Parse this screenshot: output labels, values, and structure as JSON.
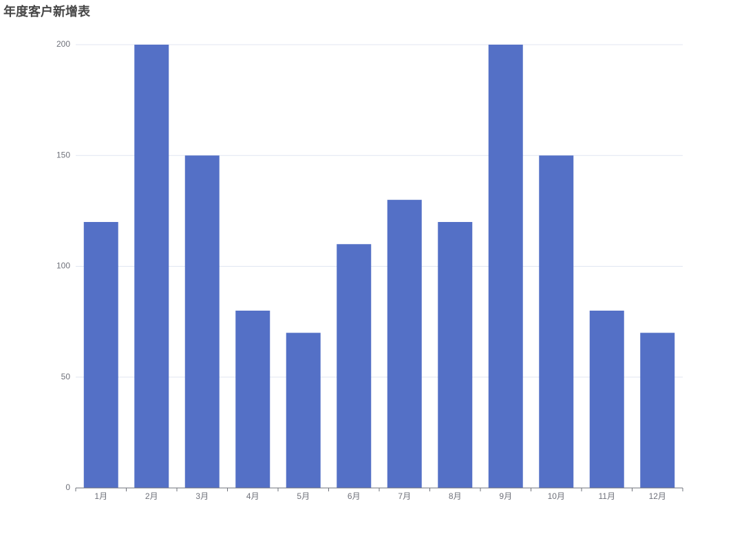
{
  "chart_data": {
    "type": "bar",
    "title": "年度客户新增表",
    "categories": [
      "1月",
      "2月",
      "3月",
      "4月",
      "5月",
      "6月",
      "7月",
      "8月",
      "9月",
      "10月",
      "11月",
      "12月"
    ],
    "values": [
      120,
      200,
      150,
      80,
      70,
      110,
      130,
      120,
      200,
      150,
      80,
      70
    ],
    "color": "#5470c6",
    "ylim": [
      0,
      200
    ],
    "yticks": [
      0,
      50,
      100,
      150,
      200
    ],
    "grid": true
  }
}
